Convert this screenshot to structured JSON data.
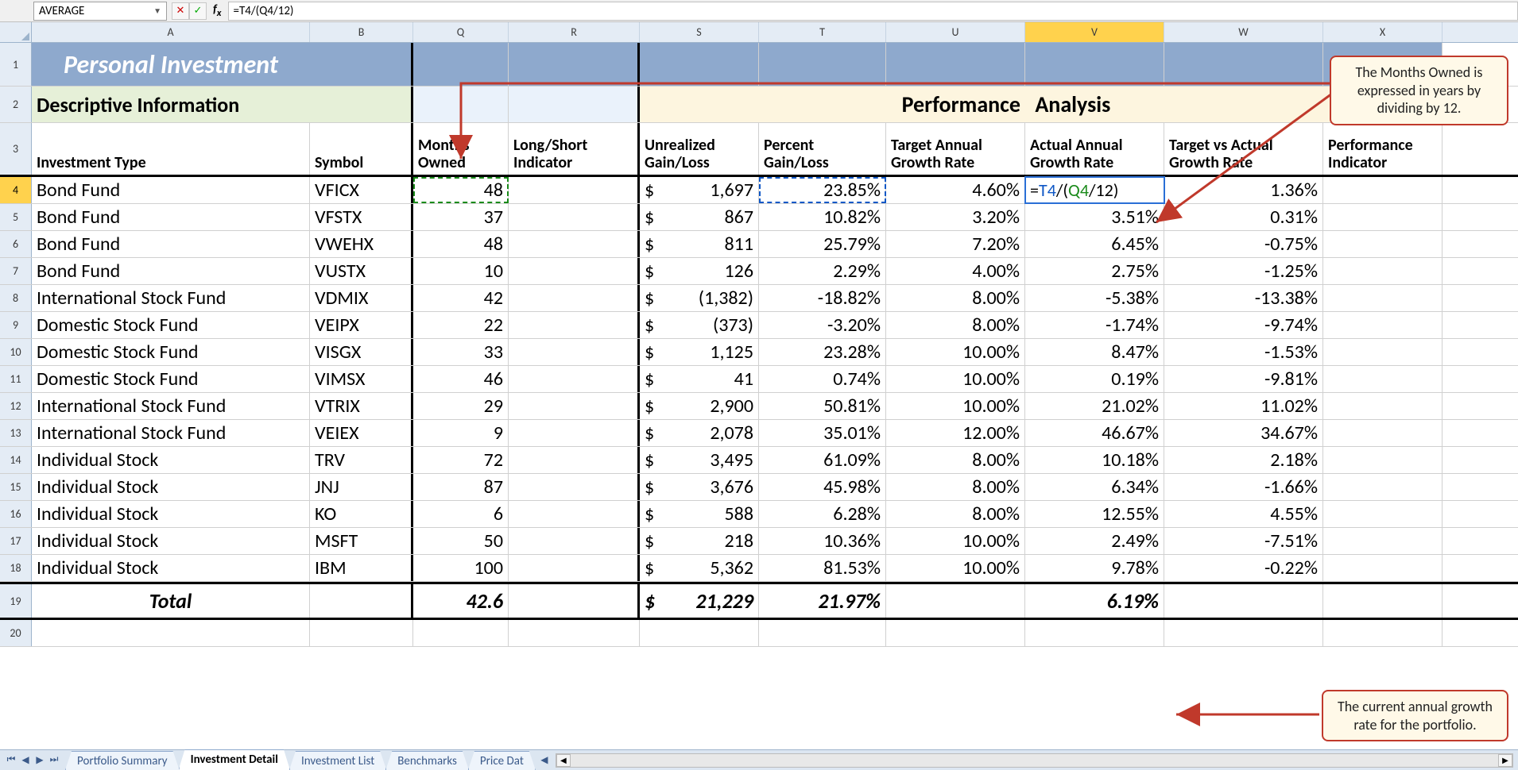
{
  "namebox": "AVERAGE",
  "formula": "=T4/(Q4/12)",
  "columns": [
    {
      "letter": "A",
      "w": "wA"
    },
    {
      "letter": "B",
      "w": "wB"
    },
    {
      "letter": "Q",
      "w": "wQ"
    },
    {
      "letter": "R",
      "w": "wR"
    },
    {
      "letter": "S",
      "w": "wS"
    },
    {
      "letter": "T",
      "w": "wT"
    },
    {
      "letter": "U",
      "w": "wU"
    },
    {
      "letter": "V",
      "w": "wV",
      "active": true
    },
    {
      "letter": "W",
      "w": "wW"
    },
    {
      "letter": "X",
      "w": "wX"
    }
  ],
  "title_banner": "Personal Investment",
  "section_desc": "Descriptive Information",
  "section_perf": "Performance Analysis",
  "hdr": {
    "inv_type": "Investment Type",
    "symbol": "Symbol",
    "months": "Months Owned",
    "ls": "Long/Short Indicator",
    "ugl": "Unrealized Gain/Loss",
    "pgl": "Percent Gain/Loss",
    "tagr": "Target Annual Growth Rate",
    "aagr": "Actual Annual Growth Rate",
    "tva": "Target vs Actual Growth Rate",
    "pi": "Performance Indicator"
  },
  "rows": [
    {
      "n": 4,
      "type": "Bond Fund",
      "sym": "VFICX",
      "months": "48",
      "ugl": "1,697",
      "pgl": "23.85%",
      "tagr": "4.60%",
      "aagr_formula": true,
      "tva": "1.36%"
    },
    {
      "n": 5,
      "type": "Bond Fund",
      "sym": "VFSTX",
      "months": "37",
      "ugl": "867",
      "pgl": "10.82%",
      "tagr": "3.20%",
      "aagr": "3.51%",
      "tva": "0.31%"
    },
    {
      "n": 6,
      "type": "Bond Fund",
      "sym": "VWEHX",
      "months": "48",
      "ugl": "811",
      "pgl": "25.79%",
      "tagr": "7.20%",
      "aagr": "6.45%",
      "tva": "-0.75%"
    },
    {
      "n": 7,
      "type": "Bond Fund",
      "sym": "VUSTX",
      "months": "10",
      "ugl": "126",
      "pgl": "2.29%",
      "tagr": "4.00%",
      "aagr": "2.75%",
      "tva": "-1.25%"
    },
    {
      "n": 8,
      "type": "International Stock Fund",
      "sym": "VDMIX",
      "months": "42",
      "ugl": "(1,382)",
      "pgl": "-18.82%",
      "tagr": "8.00%",
      "aagr": "-5.38%",
      "tva": "-13.38%"
    },
    {
      "n": 9,
      "type": "Domestic Stock Fund",
      "sym": "VEIPX",
      "months": "22",
      "ugl": "(373)",
      "pgl": "-3.20%",
      "tagr": "8.00%",
      "aagr": "-1.74%",
      "tva": "-9.74%"
    },
    {
      "n": 10,
      "type": "Domestic Stock Fund",
      "sym": "VISGX",
      "months": "33",
      "ugl": "1,125",
      "pgl": "23.28%",
      "tagr": "10.00%",
      "aagr": "8.47%",
      "tva": "-1.53%"
    },
    {
      "n": 11,
      "type": "Domestic Stock Fund",
      "sym": "VIMSX",
      "months": "46",
      "ugl": "41",
      "pgl": "0.74%",
      "tagr": "10.00%",
      "aagr": "0.19%",
      "tva": "-9.81%"
    },
    {
      "n": 12,
      "type": "International Stock Fund",
      "sym": "VTRIX",
      "months": "29",
      "ugl": "2,900",
      "pgl": "50.81%",
      "tagr": "10.00%",
      "aagr": "21.02%",
      "tva": "11.02%"
    },
    {
      "n": 13,
      "type": "International Stock Fund",
      "sym": "VEIEX",
      "months": "9",
      "ugl": "2,078",
      "pgl": "35.01%",
      "tagr": "12.00%",
      "aagr": "46.67%",
      "tva": "34.67%"
    },
    {
      "n": 14,
      "type": "Individual Stock",
      "sym": "TRV",
      "months": "72",
      "ugl": "3,495",
      "pgl": "61.09%",
      "tagr": "8.00%",
      "aagr": "10.18%",
      "tva": "2.18%"
    },
    {
      "n": 15,
      "type": "Individual Stock",
      "sym": "JNJ",
      "months": "87",
      "ugl": "3,676",
      "pgl": "45.98%",
      "tagr": "8.00%",
      "aagr": "6.34%",
      "tva": "-1.66%"
    },
    {
      "n": 16,
      "type": "Individual Stock",
      "sym": "KO",
      "months": "6",
      "ugl": "588",
      "pgl": "6.28%",
      "tagr": "8.00%",
      "aagr": "12.55%",
      "tva": "4.55%"
    },
    {
      "n": 17,
      "type": "Individual Stock",
      "sym": "MSFT",
      "months": "50",
      "ugl": "218",
      "pgl": "10.36%",
      "tagr": "10.00%",
      "aagr": "2.49%",
      "tva": "-7.51%"
    },
    {
      "n": 18,
      "type": "Individual Stock",
      "sym": "IBM",
      "months": "100",
      "ugl": "5,362",
      "pgl": "81.53%",
      "tagr": "10.00%",
      "aagr": "9.78%",
      "tva": "-0.22%"
    }
  ],
  "total": {
    "label": "Total",
    "months": "42.6",
    "ugl": "21,229",
    "pgl": "21.97%",
    "aagr": "6.19%"
  },
  "tabs": [
    "Portfolio Summary",
    "Investment Detail",
    "Investment List",
    "Benchmarks",
    "Price Dat"
  ],
  "active_tab": 1,
  "callout1": "The Months Owned is expressed in years by dividing by 12.",
  "callout2": "The current annual growth rate for the portfolio.",
  "colors": {
    "banner": "#8ea9cd",
    "desc_bg": "#e6f0d8",
    "perf_bg": "#fdf5df",
    "colhdr_bg": "#e4ecf5",
    "active_col": "#ffd24d",
    "callout_bg": "#fff9e8",
    "callout_border": "#c0392b",
    "arrow": "#c0392b"
  }
}
